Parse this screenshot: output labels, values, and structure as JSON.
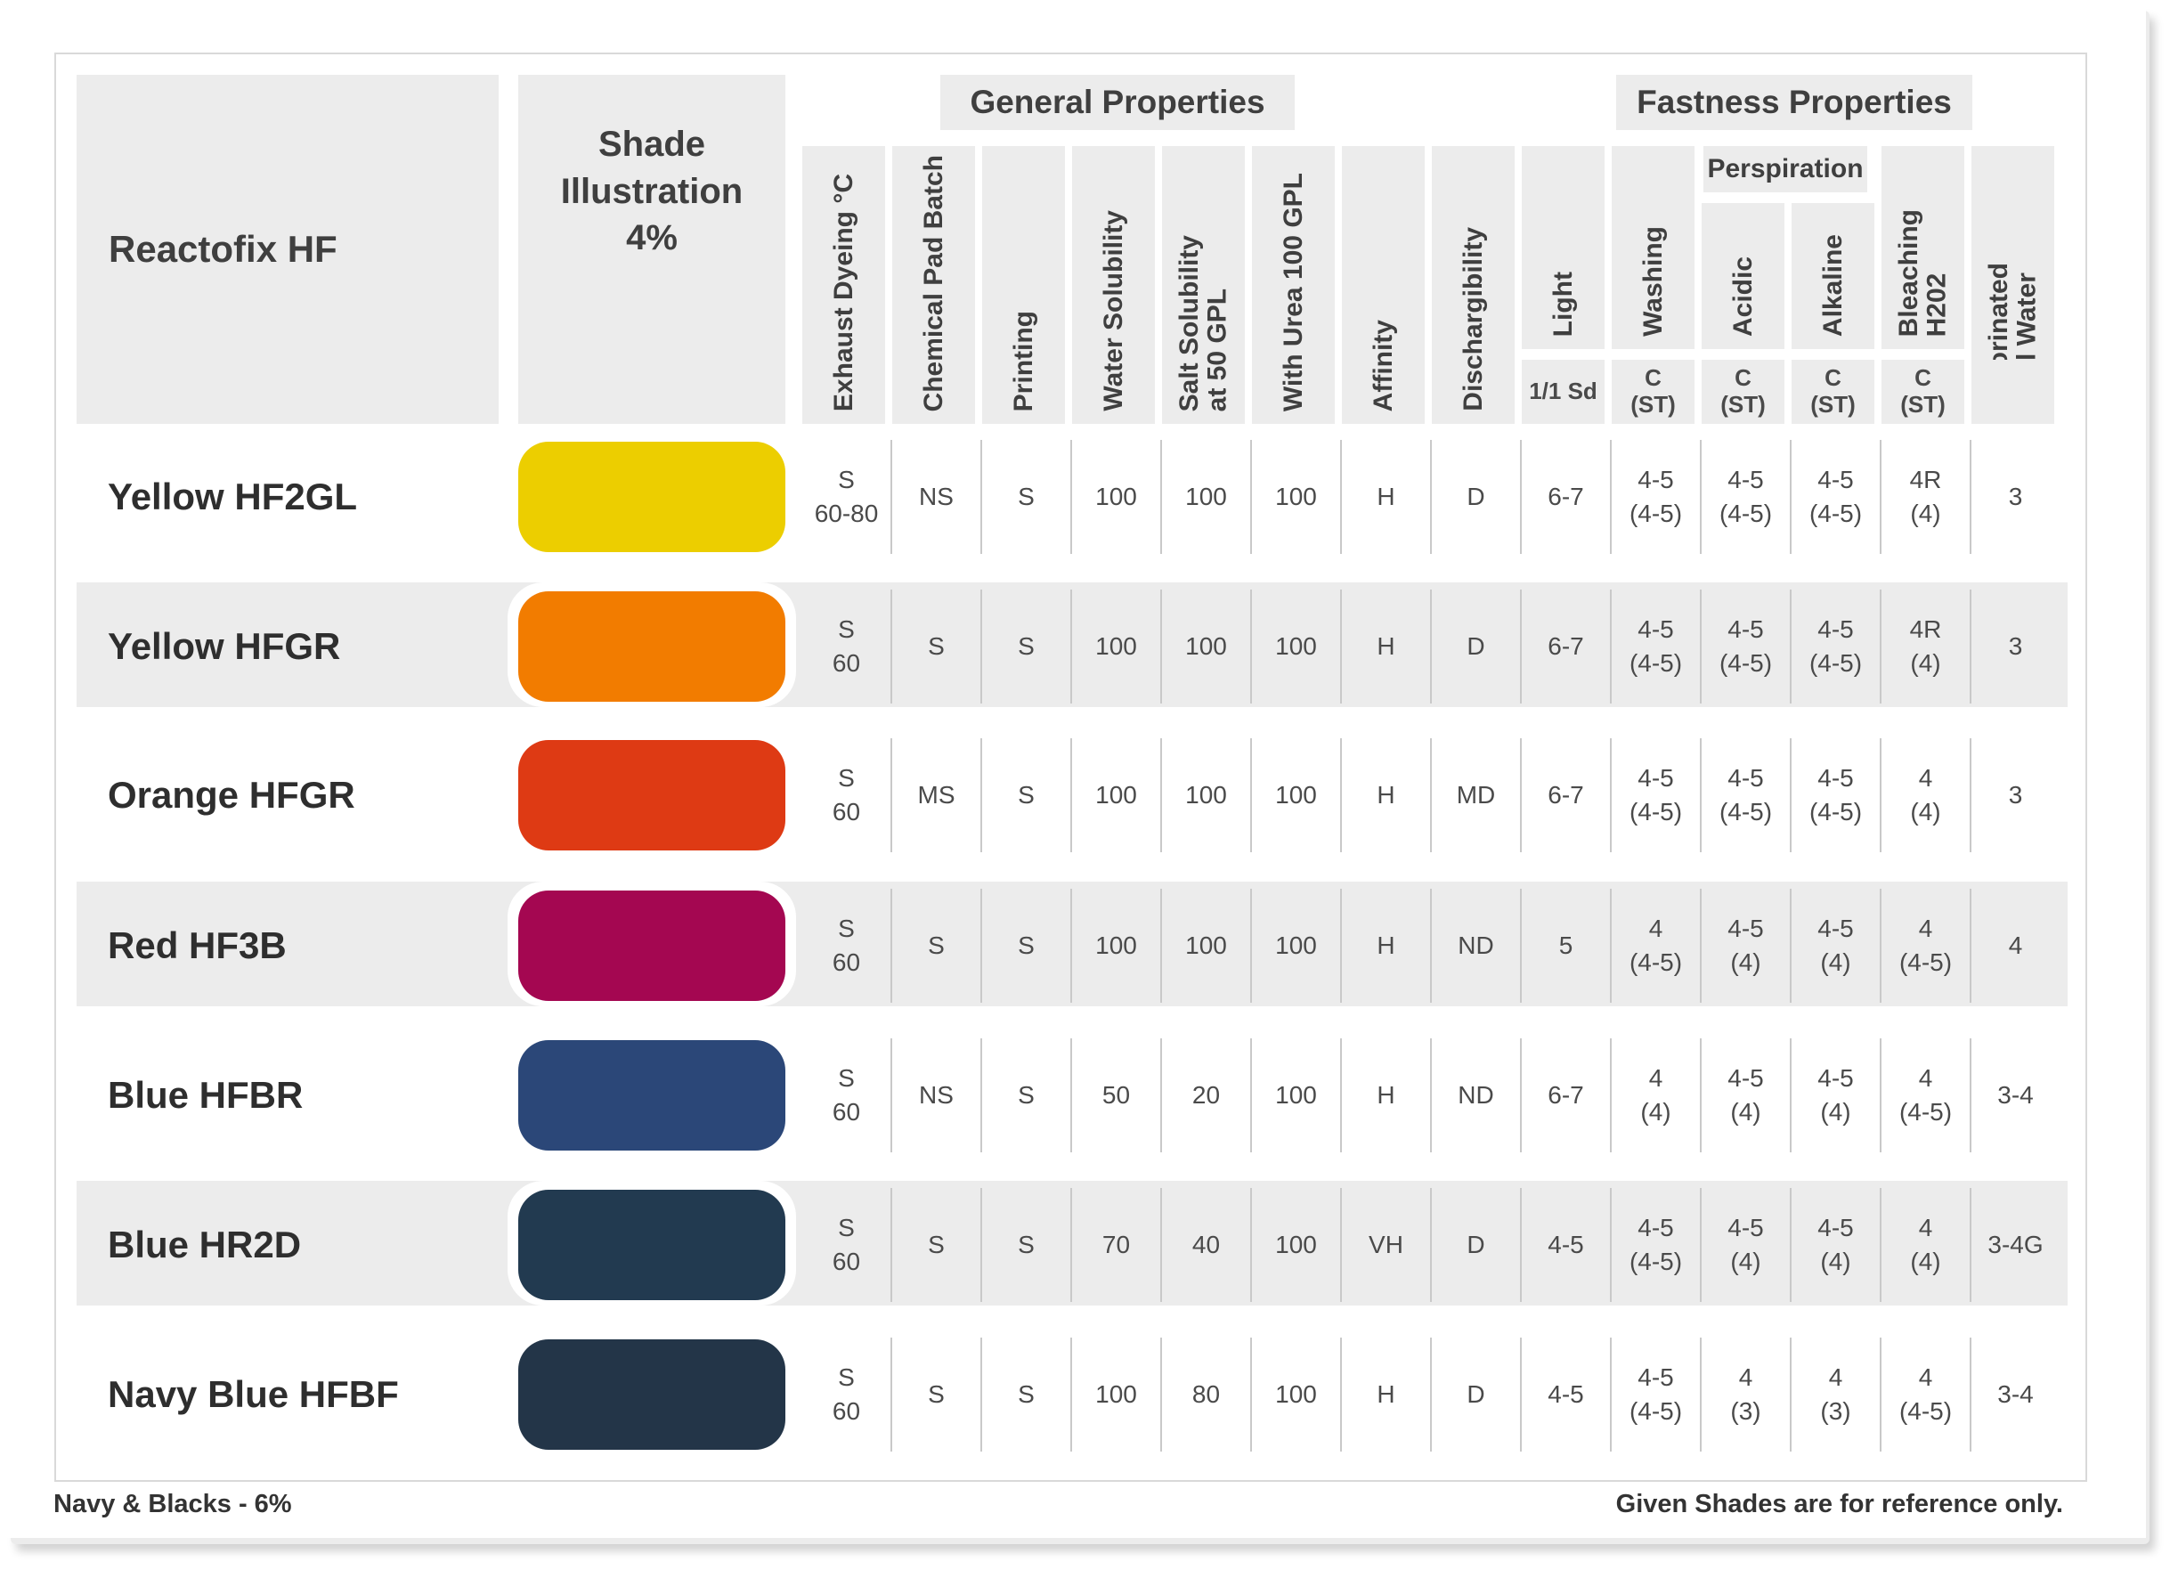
{
  "header": {
    "product_title": "Reactofix HF",
    "shade_title_l1": "Shade",
    "shade_title_l2": "Illustration",
    "shade_title_l3": "4%",
    "general_properties": "General Properties",
    "fastness_properties": "Fastness Properties",
    "perspiration": "Perspiration"
  },
  "columns": [
    {
      "key": "exhaust",
      "label": "Exhaust Dyeing °C",
      "sub": ""
    },
    {
      "key": "pad",
      "label": "Chemical Pad Batch",
      "sub": ""
    },
    {
      "key": "printing",
      "label": "Printing",
      "sub": ""
    },
    {
      "key": "water",
      "label": "Water Solubility",
      "sub": ""
    },
    {
      "key": "salt",
      "label": "Salt Solubility\nat 50 GPL",
      "sub": ""
    },
    {
      "key": "urea",
      "label": "With Urea 100 GPL",
      "sub": ""
    },
    {
      "key": "affinity",
      "label": "Affinity",
      "sub": ""
    },
    {
      "key": "discharge",
      "label": "Dischargibility",
      "sub": ""
    },
    {
      "key": "light",
      "label": "Light",
      "sub": "1/1 Sd"
    },
    {
      "key": "washing",
      "label": "Washing",
      "sub": "C\n(ST)"
    },
    {
      "key": "acidic",
      "label": "Acidic",
      "sub": "C\n(ST)"
    },
    {
      "key": "alkaline",
      "label": "Alkaline",
      "sub": "C\n(ST)"
    },
    {
      "key": "bleach",
      "label": "Bleaching\nH202",
      "sub": "C\n(ST)"
    },
    {
      "key": "pool",
      "label": "Chlorinated\nPool Water",
      "sub": ""
    }
  ],
  "rows": [
    {
      "name": "Yellow HF2GL",
      "color": "#ecce00",
      "values": [
        "S\n60-80",
        "NS",
        "S",
        "100",
        "100",
        "100",
        "H",
        "D",
        "6-7",
        "4-5\n(4-5)",
        "4-5\n(4-5)",
        "4-5\n(4-5)",
        "4R\n(4)",
        "3"
      ]
    },
    {
      "name": "Yellow HFGR",
      "color": "#f27c00",
      "values": [
        "S\n60",
        "S",
        "S",
        "100",
        "100",
        "100",
        "H",
        "D",
        "6-7",
        "4-5\n(4-5)",
        "4-5\n(4-5)",
        "4-5\n(4-5)",
        "4R\n(4)",
        "3"
      ]
    },
    {
      "name": "Orange HFGR",
      "color": "#de3a14",
      "values": [
        "S\n60",
        "MS",
        "S",
        "100",
        "100",
        "100",
        "H",
        "MD",
        "6-7",
        "4-5\n(4-5)",
        "4-5\n(4-5)",
        "4-5\n(4-5)",
        "4\n(4)",
        "3"
      ]
    },
    {
      "name": "Red HF3B",
      "color": "#a40751",
      "values": [
        "S\n60",
        "S",
        "S",
        "100",
        "100",
        "100",
        "H",
        "ND",
        "5",
        "4\n(4-5)",
        "4-5\n(4)",
        "4-5\n(4)",
        "4\n(4-5)",
        "4"
      ]
    },
    {
      "name": "Blue HFBR",
      "color": "#2b4778",
      "values": [
        "S\n60",
        "NS",
        "S",
        "50",
        "20",
        "100",
        "H",
        "ND",
        "6-7",
        "4\n(4)",
        "4-5\n(4)",
        "4-5\n(4)",
        "4\n(4-5)",
        "3-4"
      ]
    },
    {
      "name": "Blue HR2D",
      "color": "#223a50",
      "values": [
        "S\n60",
        "S",
        "S",
        "70",
        "40",
        "100",
        "VH",
        "D",
        "4-5",
        "4-5\n(4-5)",
        "4-5\n(4)",
        "4-5\n(4)",
        "4\n(4)",
        "3-4G"
      ]
    },
    {
      "name": "Navy Blue HFBF",
      "color": "#233548",
      "values": [
        "S\n60",
        "S",
        "S",
        "100",
        "80",
        "100",
        "H",
        "D",
        "4-5",
        "4-5\n(4-5)",
        "4\n(3)",
        "4\n(3)",
        "4\n(4-5)",
        "3-4"
      ]
    }
  ],
  "footer": {
    "left": "Navy & Blacks - 6%",
    "right": "Given Shades are for reference only."
  }
}
